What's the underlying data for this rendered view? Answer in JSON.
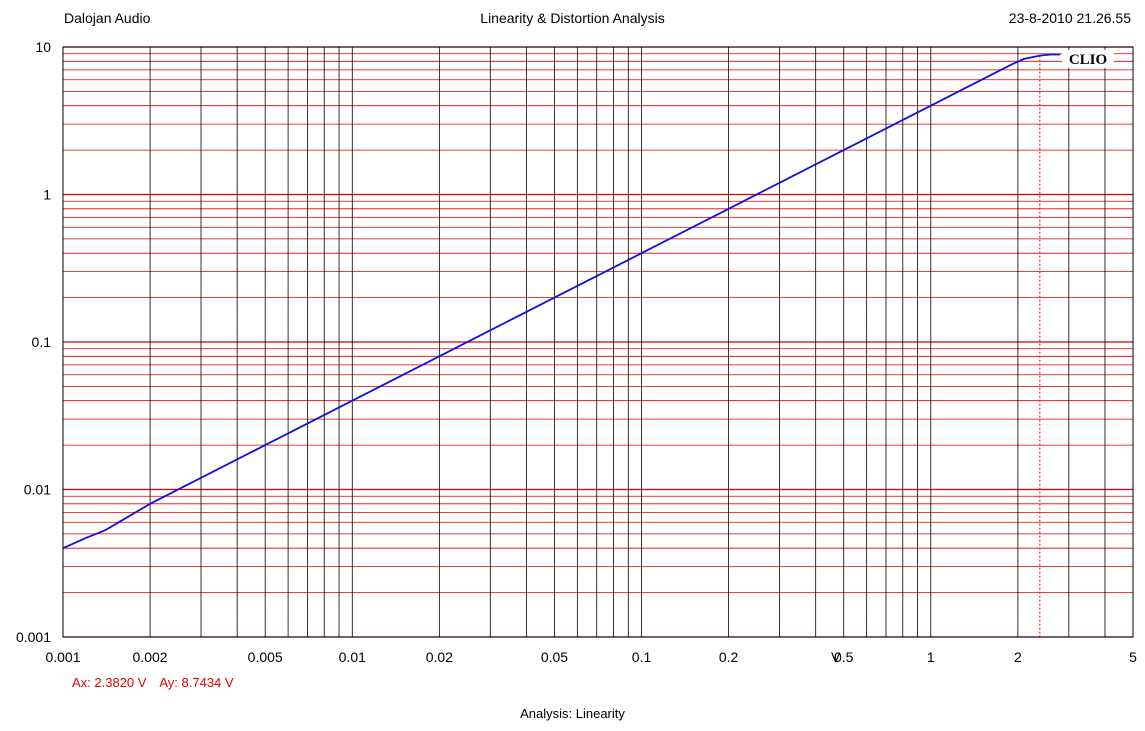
{
  "header": {
    "left": "Dalojan Audio",
    "center": "Linearity & Distortion Analysis",
    "right": "23-8-2010 21.26.55"
  },
  "cursor_readout": {
    "ax": "Ax: 2.3820 V",
    "ay": "Ay: 8.7434 V"
  },
  "footer": "Analysis: Linearity",
  "colors": {
    "grid_major_y": "#e00000",
    "grid_minor_y": "#e00000",
    "grid_x": "#000000",
    "curve": "#1010e0",
    "cursor": "#e00000"
  },
  "chart_data": {
    "type": "line",
    "title": "Linearity & Distortion Analysis",
    "xlabel": "V",
    "ylabel": "",
    "xscale": "log",
    "yscale": "log",
    "xlim": [
      0.001,
      5
    ],
    "ylim": [
      0.001,
      10
    ],
    "x_tick_labels": [
      "0.001",
      "0.002",
      "0.005",
      "0.01",
      "0.02",
      "0.05",
      "0.1",
      "0.2",
      "0.5",
      "1",
      "2",
      "5"
    ],
    "x_tick_values": [
      0.001,
      0.002,
      0.005,
      0.01,
      0.02,
      0.05,
      0.1,
      0.2,
      0.5,
      1,
      2,
      5
    ],
    "y_tick_labels": [
      "0.001",
      "0.01",
      "0.1",
      "1",
      "10"
    ],
    "y_tick_values": [
      0.001,
      0.01,
      0.1,
      1,
      10
    ],
    "annotation": "CLIO",
    "cursor": {
      "x": 2.382,
      "y": 8.7434
    },
    "grid": true,
    "series": [
      {
        "x": [
          0.001,
          0.0012,
          0.0014,
          0.002,
          0.003,
          0.005,
          0.01,
          0.02,
          0.05,
          0.1,
          0.2,
          0.5,
          1,
          1.5,
          1.9,
          2.1,
          2.382,
          2.6,
          2.8
        ],
        "y": [
          0.004,
          0.0047,
          0.0053,
          0.008,
          0.012,
          0.02,
          0.04,
          0.08,
          0.2,
          0.4,
          0.8,
          2.0,
          4.0,
          6.0,
          7.6,
          8.3,
          8.7434,
          8.9,
          8.9
        ]
      }
    ]
  }
}
